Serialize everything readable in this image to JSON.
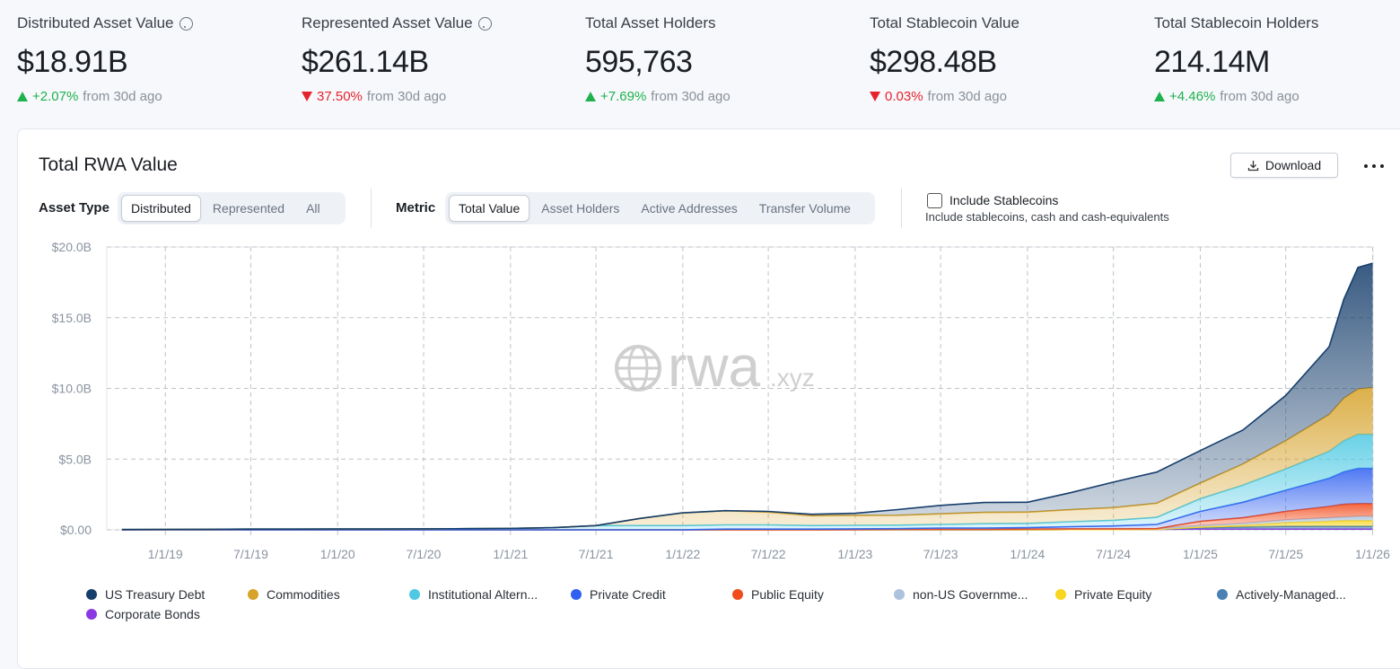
{
  "stats": [
    {
      "title": "Distributed Asset Value",
      "help": true,
      "value": "$18.91B",
      "change": "+2.07%",
      "direction": "up",
      "suffix": "from 30d ago"
    },
    {
      "title": "Represented Asset Value",
      "help": true,
      "value": "$261.14B",
      "change": "37.50%",
      "direction": "down",
      "suffix": "from 30d ago"
    },
    {
      "title": "Total Asset Holders",
      "help": false,
      "value": "595,763",
      "change": "+7.69%",
      "direction": "up",
      "suffix": "from 30d ago"
    },
    {
      "title": "Total Stablecoin Value",
      "help": false,
      "value": "$298.48B",
      "change": "0.03%",
      "direction": "down",
      "suffix": "from 30d ago"
    },
    {
      "title": "Total Stablecoin Holders",
      "help": false,
      "value": "214.14M",
      "change": "+4.46%",
      "direction": "up",
      "suffix": "from 30d ago"
    }
  ],
  "panel": {
    "download": "Download",
    "asset_type": {
      "label": "Asset Type",
      "options": [
        "Distributed",
        "Represented",
        "All"
      ],
      "selected": 0
    },
    "metric": {
      "label": "Metric",
      "options": [
        "Total Value",
        "Asset Holders",
        "Active Addresses",
        "Transfer Volume"
      ],
      "selected": 0
    },
    "checkbox": {
      "label": "Include Stablecoins",
      "description": "Include stablecoins, cash and cash-equivalents",
      "checked": false
    },
    "watermark": {
      "main": "rwa",
      "suffix": ".xyz"
    }
  },
  "chart_data": {
    "type": "stacked_area",
    "title": "Total RWA Value",
    "x": [
      "10/1/18",
      "1/1/19",
      "4/1/19",
      "7/1/19",
      "10/1/19",
      "1/1/20",
      "4/1/20",
      "7/1/20",
      "10/1/20",
      "1/1/21",
      "4/1/21",
      "7/1/21",
      "10/1/21",
      "1/1/22",
      "4/1/22",
      "7/1/22",
      "10/1/22",
      "1/1/23",
      "4/1/23",
      "7/1/23",
      "10/1/23",
      "1/1/24",
      "4/1/24",
      "7/1/24",
      "10/1/24",
      "1/1/25",
      "4/1/25",
      "7/1/25",
      "10/1/25",
      "11/1/25",
      "12/1/25",
      "1/1/26"
    ],
    "xlim": [
      "8/30/18",
      "1/2/26"
    ],
    "xticks": [
      "1/1/19",
      "7/1/19",
      "1/1/20",
      "7/1/20",
      "1/1/21",
      "7/1/21",
      "1/1/22",
      "7/1/22",
      "1/1/23",
      "7/1/23",
      "1/1/24",
      "7/1/24",
      "1/1/25",
      "7/1/25",
      "1/1/26"
    ],
    "ylim": [
      0,
      20
    ],
    "yticks": [
      {
        "value": 0,
        "label": "$0.00"
      },
      {
        "value": 5,
        "label": "$5.0B"
      },
      {
        "value": 10,
        "label": "$10.0B"
      },
      {
        "value": 15,
        "label": "$15.0B"
      },
      {
        "value": 20,
        "label": "$20.0B"
      }
    ],
    "grid": true,
    "legend": "bottom",
    "series": [
      {
        "name": "US Treasury Debt",
        "color": "#163e6c",
        "values": [
          0,
          0,
          0,
          0,
          0,
          0,
          0,
          0,
          0,
          0,
          0,
          0,
          0,
          0,
          0,
          0.05,
          0.1,
          0.15,
          0.4,
          0.6,
          0.7,
          0.7,
          1.2,
          1.8,
          2.2,
          2.3,
          2.4,
          3.2,
          4.8,
          7.0,
          8.6,
          8.8
        ]
      },
      {
        "name": "Commodities",
        "color": "#d6a22a",
        "values": [
          0,
          0,
          0,
          0,
          0,
          0,
          0,
          0,
          0,
          0,
          0,
          0,
          0.5,
          0.9,
          1.0,
          0.9,
          0.7,
          0.7,
          0.7,
          0.75,
          0.8,
          0.8,
          0.85,
          0.9,
          1.0,
          1.1,
          1.5,
          2.0,
          2.6,
          3.0,
          3.2,
          3.3
        ]
      },
      {
        "name": "Institutional Altern...",
        "color": "#4ec9e3",
        "values": [
          0.02,
          0.03,
          0.04,
          0.05,
          0.05,
          0.06,
          0.06,
          0.07,
          0.08,
          0.1,
          0.15,
          0.3,
          0.3,
          0.3,
          0.3,
          0.3,
          0.25,
          0.25,
          0.25,
          0.25,
          0.3,
          0.3,
          0.35,
          0.4,
          0.5,
          0.9,
          1.2,
          1.5,
          1.9,
          2.2,
          2.4,
          2.4
        ]
      },
      {
        "name": "Private Credit",
        "color": "#3060f0",
        "values": [
          0,
          0,
          0,
          0,
          0,
          0,
          0,
          0,
          0,
          0,
          0,
          0,
          0,
          0,
          0.05,
          0.05,
          0.05,
          0.05,
          0.05,
          0.1,
          0.1,
          0.1,
          0.15,
          0.2,
          0.3,
          0.7,
          1.1,
          1.5,
          2.0,
          2.3,
          2.5,
          2.5
        ]
      },
      {
        "name": "Public Equity",
        "color": "#f24c1c",
        "values": [
          0,
          0,
          0,
          0,
          0,
          0,
          0,
          0,
          0,
          0,
          0,
          0,
          0,
          0,
          0,
          0,
          0,
          0,
          0,
          0,
          0,
          0,
          0,
          0,
          0,
          0.3,
          0.4,
          0.6,
          0.8,
          0.9,
          0.9,
          0.9
        ]
      },
      {
        "name": "non-US Governme...",
        "color": "#adc3dc",
        "values": [
          0,
          0,
          0,
          0,
          0,
          0,
          0,
          0,
          0,
          0,
          0,
          0,
          0,
          0,
          0,
          0,
          0,
          0.02,
          0.03,
          0.03,
          0.03,
          0.05,
          0.05,
          0.05,
          0.05,
          0.1,
          0.15,
          0.2,
          0.25,
          0.25,
          0.3,
          0.3
        ]
      },
      {
        "name": "Private Equity",
        "color": "#f8d61e",
        "values": [
          0,
          0,
          0,
          0,
          0,
          0,
          0,
          0,
          0,
          0,
          0,
          0,
          0,
          0,
          0,
          0,
          0,
          0,
          0,
          0,
          0,
          0,
          0,
          0,
          0,
          0.05,
          0.1,
          0.25,
          0.35,
          0.4,
          0.4,
          0.4
        ]
      },
      {
        "name": "Actively-Managed...",
        "color": "#4a80b2",
        "values": [
          0,
          0,
          0,
          0,
          0,
          0,
          0,
          0,
          0,
          0,
          0,
          0,
          0,
          0,
          0,
          0,
          0,
          0,
          0,
          0,
          0,
          0,
          0,
          0,
          0,
          0.1,
          0.15,
          0.2,
          0.2,
          0.2,
          0.2,
          0.2
        ]
      },
      {
        "name": "Corporate Bonds",
        "color": "#8a38e2",
        "values": [
          0,
          0,
          0,
          0,
          0,
          0,
          0,
          0,
          0,
          0,
          0,
          0,
          0,
          0,
          0,
          0,
          0,
          0,
          0,
          0,
          0,
          0,
          0.02,
          0.02,
          0.03,
          0.05,
          0.05,
          0.05,
          0.05,
          0.05,
          0.05,
          0.05
        ]
      }
    ]
  }
}
